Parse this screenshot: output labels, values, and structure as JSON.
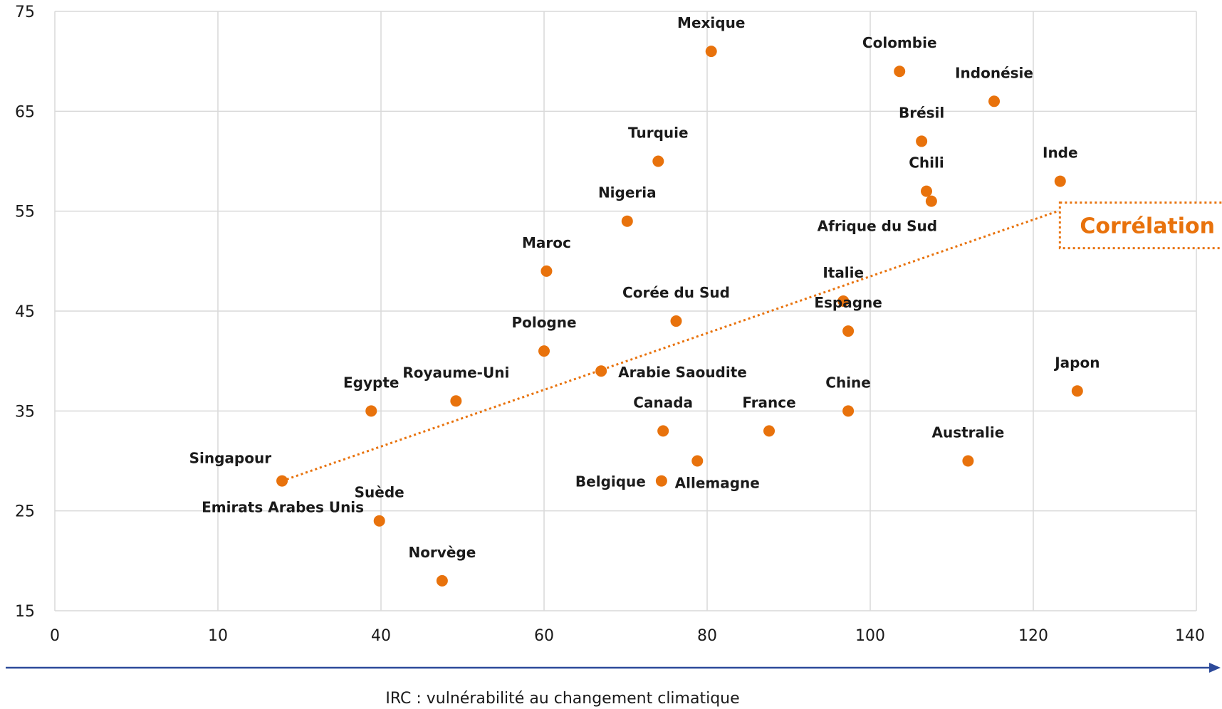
{
  "chart_data": {
    "type": "scatter",
    "title": "",
    "xlabel": "IRC : vulnérabilité au changement climatique",
    "ylabel": "",
    "x_ticks": [
      "0",
      "10",
      "40",
      "60",
      "80",
      "100",
      "120",
      "140"
    ],
    "y_ticks": [
      "15",
      "25",
      "35",
      "45",
      "55",
      "65",
      "75"
    ],
    "ylim": [
      15,
      75
    ],
    "grid": true,
    "point_color": "#E8720C",
    "trend_color": "#E8720C",
    "arrow_color": "#2D4A9A",
    "points": [
      {
        "name": "Mexique",
        "x": 80.5,
        "y": 71
      },
      {
        "name": "Colombie",
        "x": 103.6,
        "y": 69
      },
      {
        "name": "Indonésie",
        "x": 115.2,
        "y": 66
      },
      {
        "name": "Brésil",
        "x": 106.3,
        "y": 62
      },
      {
        "name": "Turquie",
        "x": 74,
        "y": 60
      },
      {
        "name": "Chili",
        "x": 106.9,
        "y": 57
      },
      {
        "name": "Afrique du Sud",
        "x": 107.5,
        "y": 56
      },
      {
        "name": "Inde",
        "x": 123.3,
        "y": 58
      },
      {
        "name": "Nigeria",
        "x": 70.2,
        "y": 54
      },
      {
        "name": "Maroc",
        "x": 60.3,
        "y": 49
      },
      {
        "name": "Italie",
        "x": 96.7,
        "y": 46
      },
      {
        "name": "Corée du Sud",
        "x": 76.2,
        "y": 44
      },
      {
        "name": "Espagne",
        "x": 97.3,
        "y": 43
      },
      {
        "name": "Pologne",
        "x": 60.0,
        "y": 41
      },
      {
        "name": "Arabie Saoudite",
        "x": 67.0,
        "y": 39
      },
      {
        "name": "Japon",
        "x": 125.4,
        "y": 37
      },
      {
        "name": "Royaume-Uni",
        "x": 49.2,
        "y": 36
      },
      {
        "name": "Egypte",
        "x": 38.2,
        "y": 35
      },
      {
        "name": "Chine",
        "x": 97.3,
        "y": 35
      },
      {
        "name": "Canada",
        "x": 74.6,
        "y": 33
      },
      {
        "name": "France",
        "x": 87.6,
        "y": 33
      },
      {
        "name": "Allemagne",
        "x": 78.8,
        "y": 30
      },
      {
        "name": "Australie",
        "x": 112.0,
        "y": 30
      },
      {
        "name": "Belgique",
        "x": 74.4,
        "y": 28
      },
      {
        "name": "Singapour",
        "x": 21.8,
        "y": 28
      },
      {
        "name": "Emirats Arabes Unis",
        "x": 21.8,
        "y": 28
      },
      {
        "name": "Suède",
        "x": 39.7,
        "y": 24
      },
      {
        "name": "Norvège",
        "x": 47.5,
        "y": 18
      }
    ],
    "trendline": {
      "from": {
        "x": 21.8,
        "y": 28
      },
      "to": {
        "x": 123.0,
        "y": 55
      }
    },
    "annotation": "Corrélation"
  }
}
